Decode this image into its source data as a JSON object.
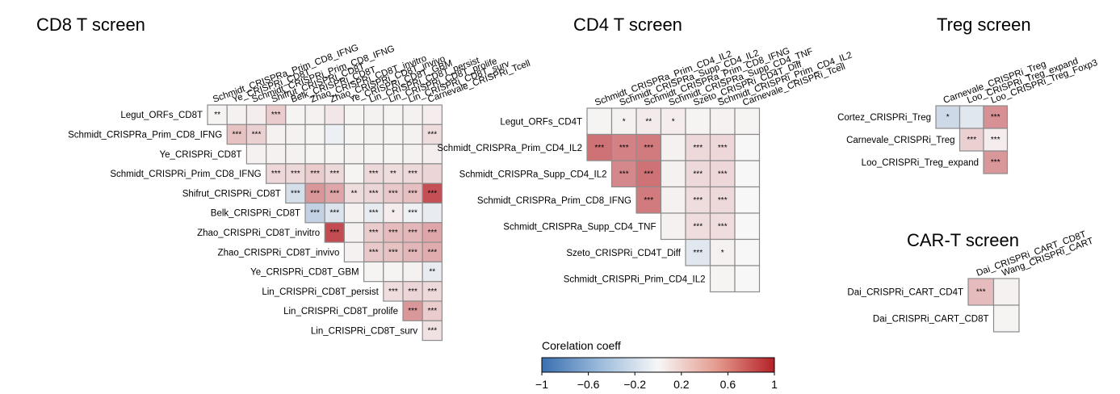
{
  "chart_data": {
    "type": "heatmap",
    "colorbar": {
      "title": "Corelation coeff",
      "ticks": [
        "−1",
        "−0.6",
        "−0.2",
        "0.2",
        "0.6",
        "1"
      ],
      "range": [
        -1,
        1
      ],
      "colors": {
        "low": "#3a6fb0",
        "mid": "#f7f7f7",
        "high": "#b52127"
      }
    },
    "panels": [
      {
        "title": "CD8 T screen",
        "cols": [
          "Schmidt_CRISPRa_Prim_CD8_IFNG",
          "Ye_CRISPRi_CD8T",
          "Schmidt_CRISPRi_Prim_CD8_IFNG",
          "Shifrut_CRISPRi_CD8T",
          "Belk_CRISPRi_CD8T",
          "Zhao_CRISPRi_CD8T_invitro",
          "Zhao_CRISPRi_CD8T_invivo",
          "Ye_CRISPRi_CD8T_GBM",
          "Lin_CRISPRi_CD8T_persist",
          "Lin_CRISPRi_CD8T_prolife",
          "Lin_CRISPRi_CD8T_surv",
          "Carnevale_CRISPRi_Tcell"
        ],
        "rows": [
          "Legut_ORFs_CD8T",
          "Schmidt_CRISPRa_Prim_CD8_IFNG",
          "Ye_CRISPRi_CD8T",
          "Schmidt_CRISPRi_Prim_CD8_IFNG",
          "Shifrut_CRISPRi_CD8T",
          "Belk_CRISPRi_CD8T",
          "Zhao_CRISPRi_CD8T_invitro",
          "Zhao_CRISPRi_CD8T_invivo",
          "Ye_CRISPRi_CD8T_GBM",
          "Lin_CRISPRi_CD8T_persist",
          "Lin_CRISPRi_CD8T_prolife",
          "Lin_CRISPRi_CD8T_surv"
        ],
        "values": [
          [
            0.02,
            0.03,
            0.05,
            0.2,
            0.02,
            0.03,
            0.08,
            0.02,
            0.03,
            0.02,
            0.03,
            0.05
          ],
          [
            null,
            0.25,
            0.18,
            0.03,
            0.03,
            0.02,
            -0.06,
            0.02,
            0.03,
            0.02,
            0.03,
            0.12
          ],
          [
            null,
            null,
            0.03,
            0.03,
            0.03,
            0.02,
            0.02,
            0.03,
            0.02,
            0.02,
            0.03,
            0.04
          ],
          [
            null,
            null,
            null,
            0.15,
            0.14,
            0.2,
            0.14,
            0.02,
            0.14,
            0.12,
            0.14,
            0.16
          ],
          [
            null,
            null,
            null,
            null,
            -0.18,
            0.45,
            0.38,
            0.12,
            0.16,
            0.22,
            0.26,
            0.78
          ],
          [
            null,
            null,
            null,
            null,
            null,
            -0.28,
            -0.15,
            0.03,
            -0.08,
            0.05,
            -0.05,
            -0.08
          ],
          [
            null,
            null,
            null,
            null,
            null,
            null,
            0.8,
            0.03,
            0.2,
            0.28,
            0.3,
            0.38
          ],
          [
            null,
            null,
            null,
            null,
            null,
            null,
            null,
            0.03,
            0.22,
            0.25,
            0.3,
            0.35
          ],
          [
            null,
            null,
            null,
            null,
            null,
            null,
            null,
            null,
            0.02,
            0.02,
            0.03,
            -0.08
          ],
          [
            null,
            null,
            null,
            null,
            null,
            null,
            null,
            null,
            null,
            0.12,
            0.16,
            0.14
          ],
          [
            null,
            null,
            null,
            null,
            null,
            null,
            null,
            null,
            null,
            null,
            0.45,
            0.2
          ],
          [
            null,
            null,
            null,
            null,
            null,
            null,
            null,
            null,
            null,
            null,
            null,
            0.1
          ]
        ],
        "stars": [
          [
            "**",
            "",
            "",
            "***",
            "",
            "",
            "",
            "",
            "",
            "",
            "",
            ""
          ],
          [
            "",
            "***",
            "***",
            "",
            "",
            "",
            "",
            "",
            "",
            "",
            "",
            "***"
          ],
          [
            "",
            "",
            "",
            "",
            "",
            "",
            "",
            "",
            "",
            "",
            "",
            ""
          ],
          [
            "",
            "",
            "",
            "***",
            "***",
            "***",
            "***",
            "",
            "***",
            "**",
            "***",
            ""
          ],
          [
            "",
            "",
            "",
            "",
            "***",
            "***",
            "***",
            "**",
            "***",
            "***",
            "***",
            "***"
          ],
          [
            "",
            "",
            "",
            "",
            "",
            "***",
            "***",
            "",
            "***",
            "*",
            "***",
            ""
          ],
          [
            "",
            "",
            "",
            "",
            "",
            "",
            "***",
            "",
            "***",
            "***",
            "***",
            "***"
          ],
          [
            "",
            "",
            "",
            "",
            "",
            "",
            "",
            "",
            "***",
            "***",
            "***",
            "***"
          ],
          [
            "",
            "",
            "",
            "",
            "",
            "",
            "",
            "",
            "",
            "",
            "",
            "**"
          ],
          [
            "",
            "",
            "",
            "",
            "",
            "",
            "",
            "",
            "",
            "***",
            "***",
            "***"
          ],
          [
            "",
            "",
            "",
            "",
            "",
            "",
            "",
            "",
            "",
            "",
            "***",
            "***"
          ],
          [
            "",
            "",
            "",
            "",
            "",
            "",
            "",
            "",
            "",
            "",
            "",
            "***"
          ]
        ]
      },
      {
        "title": "CD4 T screen",
        "cols": [
          "Schmidt_CRISPRa_Prim_CD4_IL2",
          "Schmidt_CRISPRa_Supp_CD4_IL2",
          "Schmidt_CRISPRa_Prim_CD8_IFNG",
          "Schmidt_CRISPRa_Supp_CD4_TNF",
          "Szeto_CRISPRi_CD4T_Diff",
          "Schmidt_CRISPRi_Prim_CD4_IL2",
          "Carnevale_CRISPRi_Tcell"
        ],
        "rows": [
          "Legut_ORFs_CD4T",
          "Schmidt_CRISPRa_Prim_CD4_IL2",
          "Schmidt_CRISPRa_Supp_CD4_IL2",
          "Schmidt_CRISPRa_Prim_CD8_IFNG",
          "Schmidt_CRISPRa_Supp_CD4_TNF",
          "Szeto_CRISPRi_CD4T_Diff",
          "Schmidt_CRISPRi_Prim_CD4_IL2"
        ],
        "values": [
          [
            0.02,
            0.03,
            0.06,
            0.05,
            0.02,
            0.03,
            0.02
          ],
          [
            0.62,
            0.55,
            0.58,
            0.03,
            0.14,
            0.15,
            0.0
          ],
          [
            null,
            0.52,
            0.62,
            0.03,
            0.14,
            0.15,
            0.0
          ],
          [
            null,
            null,
            0.58,
            0.03,
            0.12,
            0.14,
            0.0
          ],
          [
            null,
            null,
            null,
            0.03,
            0.12,
            0.12,
            0.0
          ],
          [
            null,
            null,
            null,
            null,
            -0.12,
            0.03,
            0.0
          ],
          [
            null,
            null,
            null,
            null,
            null,
            0.02,
            0.0
          ]
        ],
        "stars": [
          [
            "",
            "*",
            "**",
            "*",
            "",
            "",
            ""
          ],
          [
            "***",
            "***",
            "***",
            "",
            "***",
            "***",
            ""
          ],
          [
            "",
            "***",
            "***",
            "",
            "***",
            "***",
            ""
          ],
          [
            "",
            "",
            "***",
            "",
            "***",
            "***",
            ""
          ],
          [
            "",
            "",
            "",
            "",
            "***",
            "***",
            ""
          ],
          [
            "",
            "",
            "",
            "",
            "***",
            "*",
            ""
          ],
          [
            "",
            "",
            "",
            "",
            "",
            "",
            ""
          ]
        ]
      },
      {
        "title": "Treg screen",
        "cols": [
          "Carnevale_CRISPRi_Treg",
          "Loo_CRISPRi_Treg_expand",
          "Loo_CRISPRi_Treg_Foxp3"
        ],
        "rows": [
          "Cortez_CRISPRi_Treg",
          "Carnevale_CRISPRi_Treg",
          "Loo_CRISPRi_Treg_expand"
        ],
        "values": [
          [
            -0.22,
            -0.12,
            0.48
          ],
          [
            null,
            0.18,
            0.05
          ],
          [
            null,
            null,
            0.45
          ]
        ],
        "stars": [
          [
            "*",
            "",
            "***"
          ],
          [
            "",
            "***",
            "***"
          ],
          [
            "",
            "",
            "***"
          ]
        ]
      },
      {
        "title": "CAR-T screen",
        "cols": [
          "Dai_CRISPRi_CART_CD8T",
          "Wang_CRISPRi_CART"
        ],
        "rows": [
          "Dai_CRISPRi_CART_CD4T",
          "Dai_CRISPRi_CART_CD8T"
        ],
        "values": [
          [
            0.28,
            0.03
          ],
          [
            null,
            0.02
          ]
        ],
        "stars": [
          [
            "***",
            ""
          ],
          [
            "",
            ""
          ]
        ]
      }
    ]
  }
}
